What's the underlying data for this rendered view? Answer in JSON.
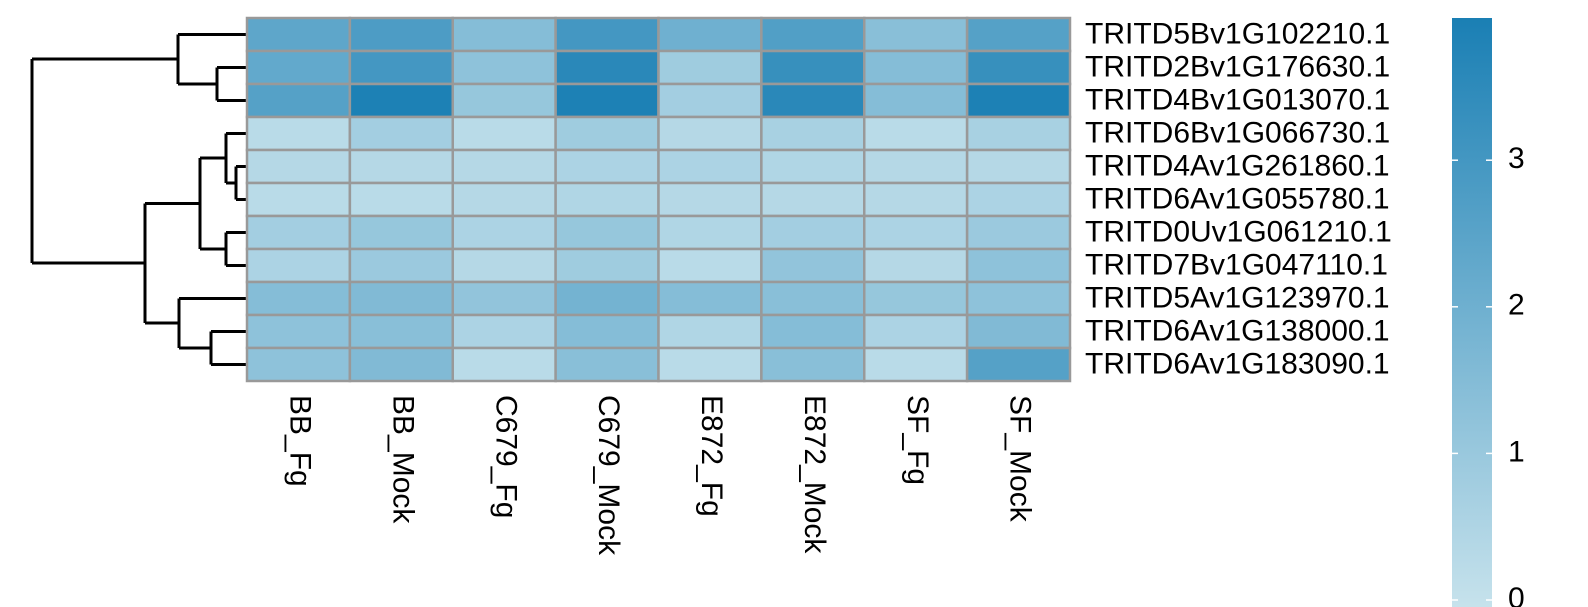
{
  "chart_data": {
    "type": "heatmap",
    "categories": [
      "BB_Fg",
      "BB_Mock",
      "C679_Fg",
      "C679_Mock",
      "E872_Fg",
      "E872_Mock",
      "SF_Fg",
      "SF_Mock"
    ],
    "rows": [
      "TRITD5Bv1G102210.1",
      "TRITD2Bv1G176630.1",
      "TRITD4Bv1G013070.1",
      "TRITD6Bv1G066730.1",
      "TRITD4Av1G261860.1",
      "TRITD6Av1G055780.1",
      "TRITD0Uv1G061210.1",
      "TRITD7Bv1G047110.1",
      "TRITD5Av1G123970.1",
      "TRITD6Av1G138000.1",
      "TRITD6Av1G183090.1"
    ],
    "values": [
      [
        2.4,
        2.8,
        1.5,
        3.0,
        2.0,
        2.7,
        1.4,
        2.6
      ],
      [
        2.3,
        3.0,
        1.3,
        3.6,
        0.9,
        3.3,
        1.5,
        3.3
      ],
      [
        2.6,
        3.9,
        1.1,
        3.9,
        0.8,
        3.6,
        1.5,
        3.9
      ],
      [
        0.3,
        0.8,
        0.3,
        0.9,
        0.4,
        0.7,
        0.3,
        0.7
      ],
      [
        0.4,
        0.4,
        0.4,
        0.6,
        0.6,
        0.5,
        0.4,
        0.4
      ],
      [
        0.3,
        0.3,
        0.4,
        0.5,
        0.4,
        0.4,
        0.4,
        0.6
      ],
      [
        0.8,
        1.1,
        0.6,
        1.1,
        0.5,
        0.8,
        0.6,
        1.0
      ],
      [
        0.6,
        1.0,
        0.4,
        0.9,
        0.3,
        1.2,
        0.4,
        1.3
      ],
      [
        1.5,
        1.6,
        1.2,
        1.9,
        1.5,
        1.4,
        1.1,
        1.3
      ],
      [
        1.3,
        1.4,
        0.6,
        1.5,
        0.5,
        1.5,
        0.6,
        1.6
      ],
      [
        1.3,
        1.6,
        0.3,
        1.4,
        0.3,
        1.4,
        0.3,
        2.6
      ]
    ],
    "colors": [
      "#c6e2ec",
      "#1a7fb4"
    ],
    "clim": [
      0,
      3.97
    ],
    "cticks": [
      0,
      1,
      2,
      3
    ]
  }
}
